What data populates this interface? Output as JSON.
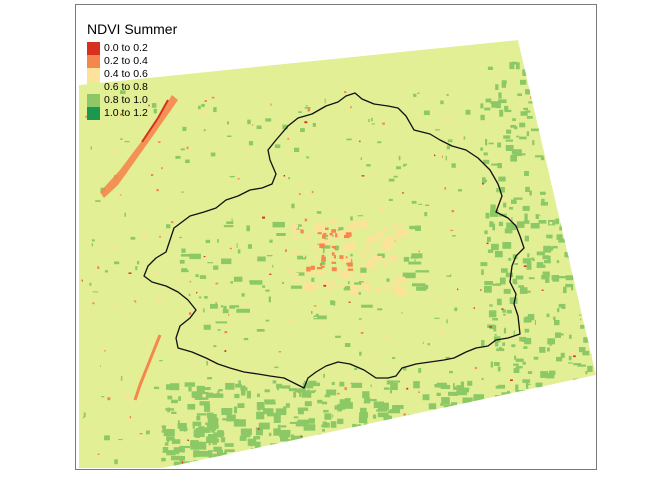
{
  "map": {
    "legend": {
      "title": "NDVI Summer",
      "items": [
        {
          "label": "0.0 to 0.2",
          "color": "#d7301f"
        },
        {
          "label": "0.2 to 0.4",
          "color": "#f4874c"
        },
        {
          "label": "0.4 to 0.6",
          "color": "#fde29a"
        },
        {
          "label": "0.6 to 0.8",
          "color": "#e3ef95"
        },
        {
          "label": "0.8 to 1.0",
          "color": "#8cc966"
        },
        {
          "label": "1.0 to 1.2",
          "color": "#1a9850"
        }
      ]
    }
  }
}
